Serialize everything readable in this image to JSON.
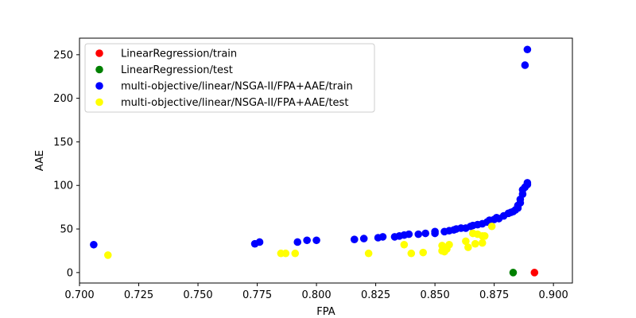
{
  "chart_data": {
    "type": "scatter",
    "title": "",
    "xlabel": "FPA",
    "ylabel": "AAE",
    "xlim": [
      0.7,
      0.908
    ],
    "ylim": [
      -12,
      269
    ],
    "xticks": [
      0.7,
      0.725,
      0.75,
      0.775,
      0.8,
      0.825,
      0.85,
      0.875,
      0.9
    ],
    "xtick_labels": [
      "0.700",
      "0.725",
      "0.750",
      "0.775",
      "0.800",
      "0.825",
      "0.850",
      "0.875",
      "0.900"
    ],
    "yticks": [
      0,
      50,
      100,
      150,
      200,
      250
    ],
    "ytick_labels": [
      "0",
      "50",
      "100",
      "150",
      "200",
      "250"
    ],
    "grid": false,
    "legend_position": "top-left",
    "series": [
      {
        "name": "LinearRegression/train",
        "color": "#ff0000",
        "points": [
          [
            0.892,
            0
          ]
        ]
      },
      {
        "name": "LinearRegression/test",
        "color": "#008000",
        "points": [
          [
            0.883,
            0
          ]
        ]
      },
      {
        "name": "multi-objective/linear/NSGA-II/FPA+AAE/train",
        "color": "#0000ff",
        "points": [
          [
            0.706,
            32
          ],
          [
            0.774,
            33
          ],
          [
            0.776,
            35
          ],
          [
            0.792,
            35
          ],
          [
            0.796,
            37
          ],
          [
            0.8,
            37
          ],
          [
            0.816,
            38
          ],
          [
            0.82,
            39
          ],
          [
            0.826,
            40
          ],
          [
            0.828,
            41
          ],
          [
            0.833,
            41
          ],
          [
            0.835,
            42
          ],
          [
            0.837,
            43
          ],
          [
            0.839,
            44
          ],
          [
            0.843,
            44
          ],
          [
            0.846,
            45
          ],
          [
            0.85,
            45
          ],
          [
            0.85,
            47
          ],
          [
            0.854,
            47
          ],
          [
            0.856,
            48
          ],
          [
            0.858,
            49
          ],
          [
            0.859,
            50
          ],
          [
            0.861,
            51
          ],
          [
            0.863,
            51
          ],
          [
            0.865,
            53
          ],
          [
            0.866,
            54
          ],
          [
            0.868,
            55
          ],
          [
            0.87,
            56
          ],
          [
            0.872,
            58
          ],
          [
            0.873,
            60
          ],
          [
            0.875,
            61
          ],
          [
            0.876,
            63
          ],
          [
            0.877,
            62
          ],
          [
            0.879,
            65
          ],
          [
            0.881,
            68
          ],
          [
            0.882,
            69
          ],
          [
            0.883,
            70
          ],
          [
            0.884,
            72
          ],
          [
            0.885,
            74
          ],
          [
            0.885,
            77
          ],
          [
            0.886,
            80
          ],
          [
            0.886,
            84
          ],
          [
            0.887,
            90
          ],
          [
            0.887,
            95
          ],
          [
            0.888,
            98
          ],
          [
            0.889,
            101
          ],
          [
            0.889,
            103
          ],
          [
            0.888,
            238
          ],
          [
            0.889,
            256
          ]
        ]
      },
      {
        "name": "multi-objective/linear/NSGA-II/FPA+AAE/test",
        "color": "#ffff00",
        "points": [
          [
            0.712,
            20
          ],
          [
            0.785,
            22
          ],
          [
            0.787,
            22
          ],
          [
            0.791,
            22
          ],
          [
            0.822,
            22
          ],
          [
            0.837,
            32
          ],
          [
            0.84,
            22
          ],
          [
            0.845,
            23
          ],
          [
            0.853,
            25
          ],
          [
            0.854,
            24
          ],
          [
            0.853,
            31
          ],
          [
            0.855,
            27
          ],
          [
            0.856,
            32
          ],
          [
            0.863,
            36
          ],
          [
            0.864,
            29
          ],
          [
            0.866,
            45
          ],
          [
            0.867,
            33
          ],
          [
            0.868,
            44
          ],
          [
            0.87,
            34
          ],
          [
            0.87,
            42
          ],
          [
            0.871,
            42
          ],
          [
            0.874,
            53
          ]
        ]
      }
    ]
  }
}
